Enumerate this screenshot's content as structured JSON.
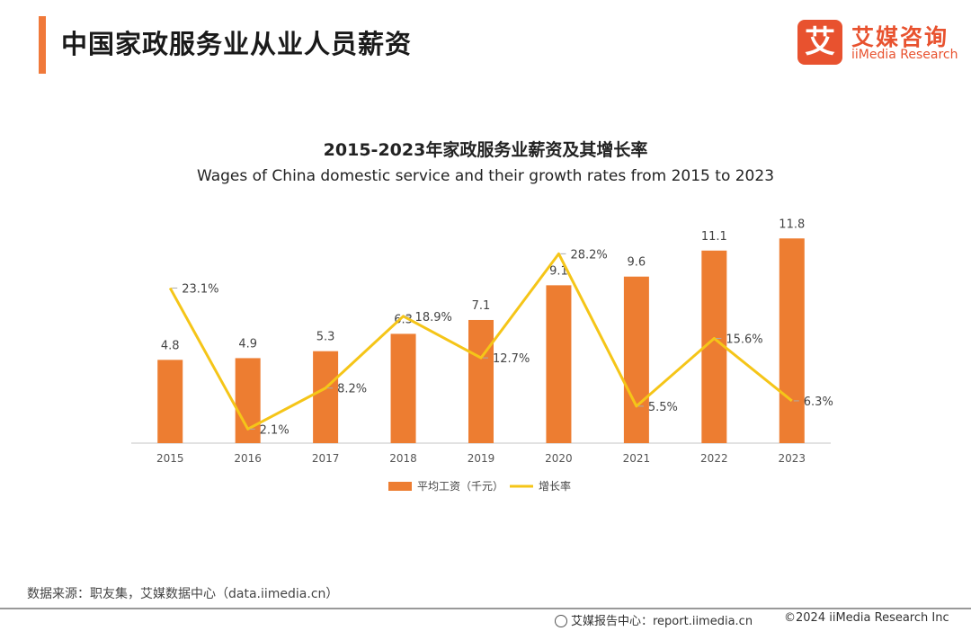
{
  "header": {
    "title": "中国家政服务业从业人员薪资",
    "logo_mark": "艾",
    "logo_cn": "艾媒咨询",
    "logo_en": "iiMedia Research"
  },
  "chart_data": {
    "type": "bar",
    "title": "2015-2023年家政服务业薪资及其增长率",
    "subtitle": "Wages of China domestic service and their growth rates from 2015 to 2023",
    "categories": [
      "2015",
      "2016",
      "2017",
      "2018",
      "2019",
      "2020",
      "2021",
      "2022",
      "2023"
    ],
    "series": [
      {
        "name": "平均工资（千元）",
        "kind": "bar",
        "color": "#ed7d31",
        "values": [
          4.8,
          4.9,
          5.3,
          6.3,
          7.1,
          9.1,
          9.6,
          11.1,
          11.8
        ],
        "labels": [
          "4.8",
          "4.9",
          "5.3",
          "6.3",
          "7.1",
          "9.1",
          "9.6",
          "11.1",
          "11.8"
        ]
      },
      {
        "name": "增长率",
        "kind": "line",
        "color": "#f5c518",
        "values": [
          23.1,
          2.1,
          8.2,
          18.9,
          12.7,
          28.2,
          5.5,
          15.6,
          6.3
        ],
        "labels": [
          "23.1%",
          "2.1%",
          "8.2%",
          "18.9%",
          "12.7%",
          "28.2%",
          "5.5%",
          "15.6%",
          "6.3%"
        ]
      }
    ],
    "ylim_bar": [
      0,
      12.5
    ],
    "ylim_line": [
      0,
      30
    ],
    "xlabel": "",
    "ylabel": "",
    "legend_position": "bottom-center",
    "grid": false
  },
  "footer": {
    "source": "数据来源：职友集，艾媒数据中心（data.iimedia.cn）",
    "report_center": "艾媒报告中心：report.iimedia.cn",
    "copyright": "©2024  iiMedia Research  Inc"
  }
}
